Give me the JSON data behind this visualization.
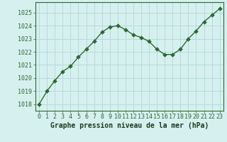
{
  "x": [
    0,
    1,
    2,
    3,
    4,
    5,
    6,
    7,
    8,
    9,
    10,
    11,
    12,
    13,
    14,
    15,
    16,
    17,
    18,
    19,
    20,
    21,
    22,
    23
  ],
  "y": [
    1018.0,
    1019.0,
    1019.8,
    1020.5,
    1020.9,
    1021.6,
    1022.2,
    1022.8,
    1023.5,
    1023.9,
    1024.0,
    1023.7,
    1023.3,
    1023.1,
    1022.8,
    1022.2,
    1021.8,
    1021.8,
    1022.2,
    1023.0,
    1023.6,
    1024.3,
    1024.8,
    1025.3
  ],
  "ylim": [
    1017.5,
    1025.8
  ],
  "xlim": [
    -0.5,
    23.5
  ],
  "yticks": [
    1018,
    1019,
    1020,
    1021,
    1022,
    1023,
    1024,
    1025
  ],
  "xticks": [
    0,
    1,
    2,
    3,
    4,
    5,
    6,
    7,
    8,
    9,
    10,
    11,
    12,
    13,
    14,
    15,
    16,
    17,
    18,
    19,
    20,
    21,
    22,
    23
  ],
  "line_color": "#2d6a2d",
  "marker_color": "#2d6a2d",
  "bg_color": "#d6f0f0",
  "grid_color": "#b8dada",
  "xlabel": "Graphe pression niveau de la mer (hPa)",
  "xlabel_color": "#1a3a1a",
  "tick_label_color": "#2d6a2d",
  "xlabel_fontsize": 7.0,
  "tick_fontsize": 6.0,
  "marker_size": 3,
  "line_width": 1.0
}
